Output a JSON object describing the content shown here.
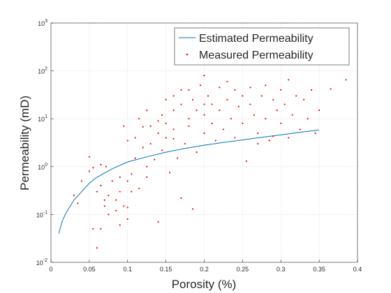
{
  "chart_data": {
    "type": "scatter",
    "xlabel": "Porosity (%)",
    "ylabel": "Permeability (mD)",
    "xlim": [
      0,
      0.4
    ],
    "xticks": [
      0,
      0.05,
      0.1,
      0.15,
      0.2,
      0.25,
      0.3,
      0.35,
      0.4
    ],
    "ylim": [
      0.01,
      1000
    ],
    "yticks": [
      {
        "value": 0.01,
        "label": "10",
        "exponent": "-2"
      },
      {
        "value": 0.1,
        "label": "10",
        "exponent": "-1"
      },
      {
        "value": 1,
        "label": "10",
        "exponent": "0"
      },
      {
        "value": 10,
        "label": "10",
        "exponent": "1"
      },
      {
        "value": 100,
        "label": "10",
        "exponent": "2"
      },
      {
        "value": 1000,
        "label": "10",
        "exponent": "3"
      }
    ],
    "ylog": true,
    "grid": true,
    "legend": "northeast",
    "series": [
      {
        "name": "Estimated Permeability",
        "kind": "line",
        "color": "#0072bd",
        "x": [
          0.01,
          0.015,
          0.02,
          0.03,
          0.04,
          0.05,
          0.06,
          0.08,
          0.1,
          0.125,
          0.15,
          0.175,
          0.2,
          0.225,
          0.25,
          0.275,
          0.3,
          0.325,
          0.35
        ],
        "values": [
          0.04,
          0.075,
          0.11,
          0.2,
          0.3,
          0.45,
          0.6,
          0.9,
          1.25,
          1.6,
          2.0,
          2.4,
          2.8,
          3.2,
          3.6,
          4.1,
          4.6,
          5.2,
          5.8
        ]
      },
      {
        "name": "Measured Permeability",
        "kind": "points",
        "color": "#ff0000",
        "x": [
          0.03,
          0.035,
          0.04,
          0.05,
          0.05,
          0.055,
          0.055,
          0.06,
          0.06,
          0.065,
          0.065,
          0.065,
          0.07,
          0.07,
          0.072,
          0.075,
          0.075,
          0.08,
          0.085,
          0.09,
          0.09,
          0.095,
          0.095,
          0.1,
          0.1,
          0.1,
          0.1,
          0.105,
          0.105,
          0.11,
          0.11,
          0.115,
          0.115,
          0.12,
          0.12,
          0.125,
          0.125,
          0.13,
          0.13,
          0.135,
          0.14,
          0.14,
          0.145,
          0.145,
          0.15,
          0.15,
          0.15,
          0.155,
          0.16,
          0.16,
          0.16,
          0.165,
          0.17,
          0.17,
          0.17,
          0.175,
          0.18,
          0.18,
          0.185,
          0.185,
          0.19,
          0.19,
          0.195,
          0.2,
          0.2,
          0.2,
          0.205,
          0.21,
          0.21,
          0.215,
          0.22,
          0.22,
          0.225,
          0.23,
          0.23,
          0.235,
          0.24,
          0.24,
          0.245,
          0.25,
          0.25,
          0.255,
          0.26,
          0.26,
          0.265,
          0.27,
          0.275,
          0.28,
          0.28,
          0.285,
          0.29,
          0.295,
          0.3,
          0.3,
          0.305,
          0.31,
          0.31,
          0.315,
          0.32,
          0.325,
          0.33,
          0.335,
          0.34,
          0.345,
          0.35,
          0.365,
          0.385,
          0.09,
          0.085,
          0.125,
          0.14,
          0.16,
          0.18,
          0.2,
          0.27,
          0.29
        ],
        "values": [
          0.25,
          0.17,
          0.5,
          1.6,
          0.8,
          0.95,
          0.05,
          0.02,
          0.3,
          1.1,
          0.4,
          0.05,
          0.2,
          0.15,
          1.0,
          0.25,
          0.1,
          0.5,
          0.12,
          0.3,
          0.6,
          0.15,
          7.0,
          0.08,
          0.14,
          0.5,
          3.5,
          0.3,
          0.7,
          1.5,
          4,
          10,
          0.35,
          6.8,
          2.5,
          0.6,
          1.0,
          7,
          3,
          1.4,
          0.07,
          5,
          12,
          2.2,
          25,
          8,
          4,
          0.75,
          30,
          15,
          6,
          1.5,
          40,
          0.22,
          20,
          3,
          10,
          7,
          0.13,
          25,
          15,
          2,
          50,
          80,
          12,
          5,
          30,
          20,
          8,
          3.5,
          45,
          15,
          6,
          25,
          60,
          10,
          40,
          4,
          18,
          30,
          8,
          1.3,
          20,
          45,
          12,
          5,
          30,
          10,
          50,
          3.5,
          25,
          15,
          40,
          8,
          20,
          65,
          4,
          12,
          30,
          6,
          25,
          10,
          40,
          5,
          15,
          42,
          65,
          0.06,
          0.2,
          15,
          9,
          3.8,
          40,
          20,
          3,
          4.3
        ]
      }
    ]
  }
}
